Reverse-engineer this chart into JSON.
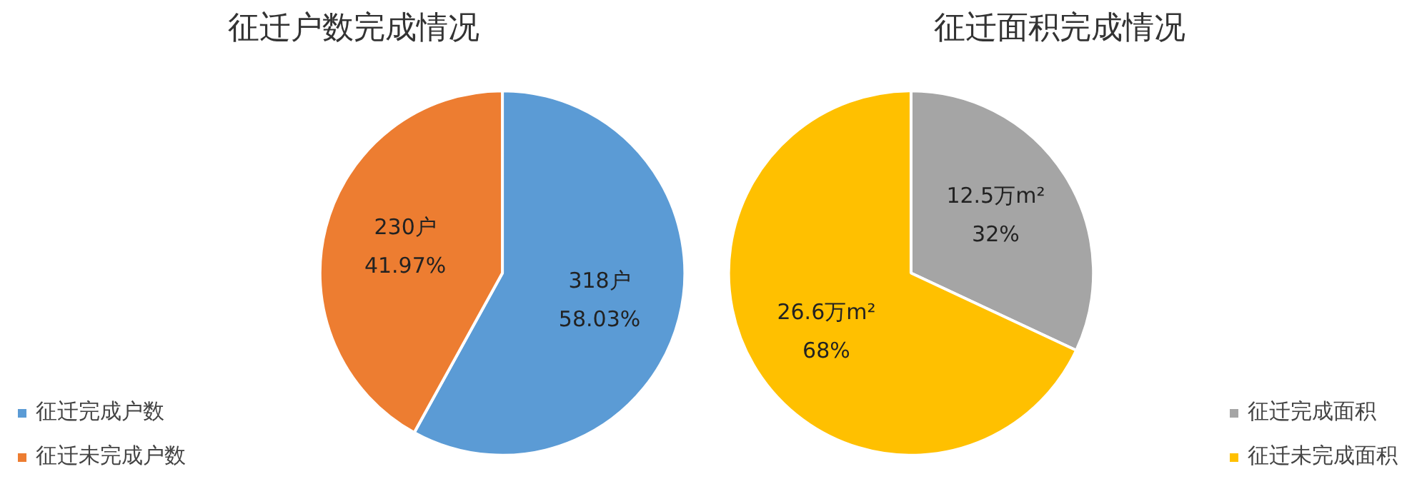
{
  "chart_data": [
    {
      "type": "pie",
      "title": "征迁户数完成情况",
      "categories": [
        "征迁完成户数",
        "征迁未完成户数"
      ],
      "values": [
        318,
        230
      ],
      "colors": [
        "#5b9bd5",
        "#ed7d31"
      ],
      "value_labels": [
        "318户\n58.03%",
        "230户\n41.97%"
      ],
      "legend": "bottom left"
    },
    {
      "type": "pie",
      "title": "征迁面积完成情况",
      "categories": [
        "征迁完成面积",
        "征迁未完成面积"
      ],
      "values": [
        12.5,
        26.6
      ],
      "colors": [
        "#a5a5a5",
        "#ffc000"
      ],
      "value_labels": [
        "12.5万m²\n32%",
        "26.6万m²\n68%"
      ],
      "legend": "bottom right"
    }
  ]
}
